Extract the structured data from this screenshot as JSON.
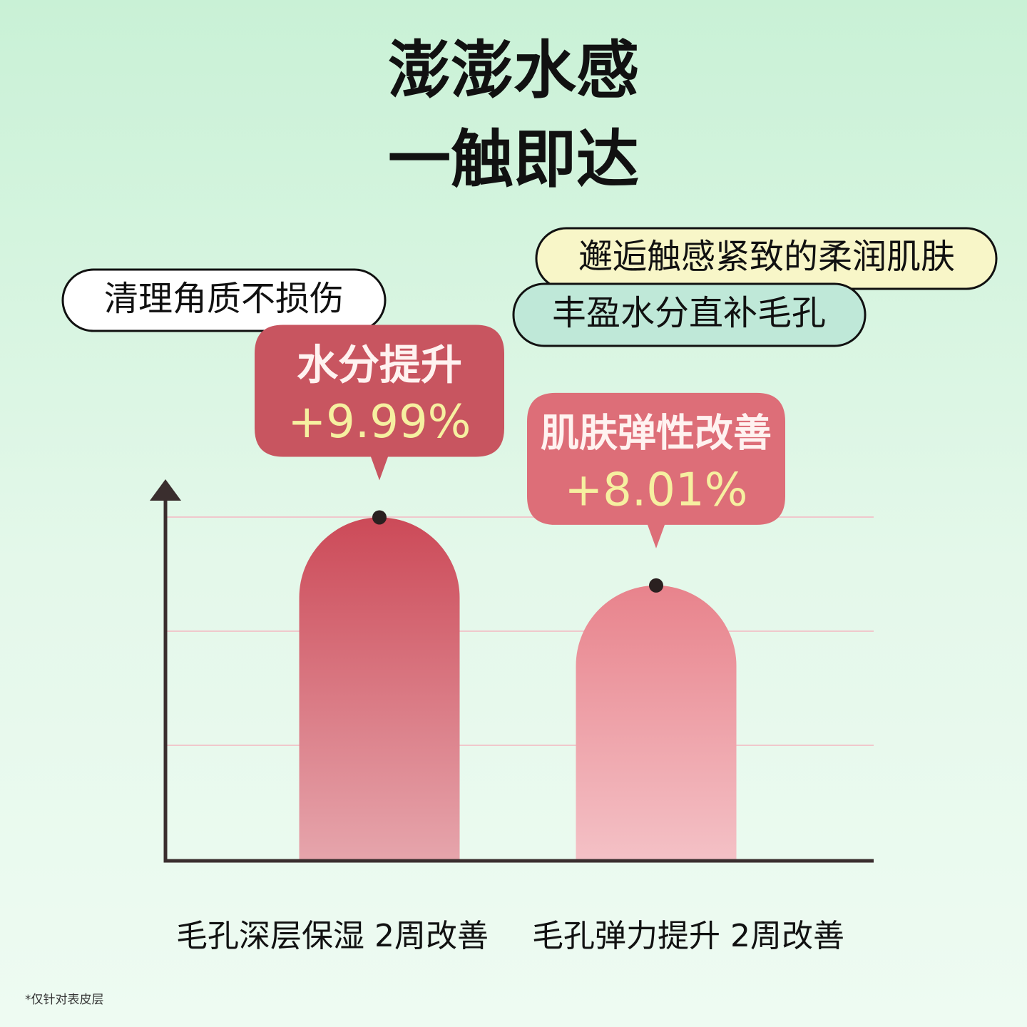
{
  "chart_data": {
    "type": "bar",
    "title_lines": [
      "澎澎水感",
      "一触即达"
    ],
    "tags": [
      "清理角质不损伤",
      "邂逅触感紧致的柔润肌肤",
      "丰盈水分直补毛孔"
    ],
    "categories": [
      "毛孔深层保湿 2周改善",
      "毛孔弹力提升 2周改善"
    ],
    "bar_titles": [
      "水分提升",
      "肌肤弹性改善"
    ],
    "values": [
      9.99,
      8.01
    ],
    "value_labels": [
      "+9.99%",
      "+8.01%"
    ],
    "colors": [
      "#cc4a58",
      "#e8838c"
    ],
    "ylim": [
      0,
      10
    ],
    "note": "*仅针对表皮层"
  }
}
